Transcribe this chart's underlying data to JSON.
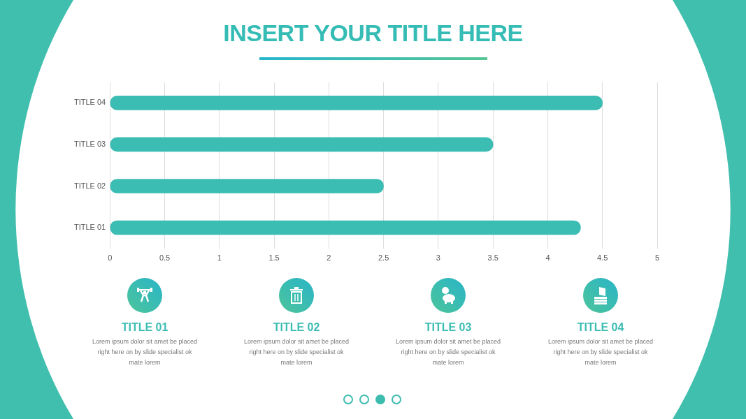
{
  "chart_data": {
    "type": "bar",
    "orientation": "horizontal",
    "title": "INSERT YOUR TITLE HERE",
    "categories": [
      "TITLE 04",
      "TITLE 03",
      "TITLE 02",
      "TITLE 01"
    ],
    "series": [
      {
        "color": "#3bbdb3",
        "values": [
          4.5,
          3.5,
          2.5,
          4.3
        ]
      }
    ],
    "xlim": [
      0,
      5
    ],
    "xticks": [
      0,
      0.5,
      1,
      1.5,
      2,
      2.5,
      3,
      3.5,
      4,
      4.5,
      5
    ],
    "grid": "x",
    "annotations": [
      "TITLE 01",
      "Lorem ipsum dolor sit amet be placed right here on by slide specialist ok mate lorem",
      "TITLE 02",
      "Lorem ipsum dolor sit amet be placed right here on by slide specialist ok mate lorem",
      "TITLE 03",
      "Lorem ipsum dolor sit amet be placed right here on by slide specialist ok mate lorem",
      "TITLE 04",
      "Lorem ipsum dolor sit amet be placed right here on by slide specialist ok mate lorem"
    ]
  }
}
